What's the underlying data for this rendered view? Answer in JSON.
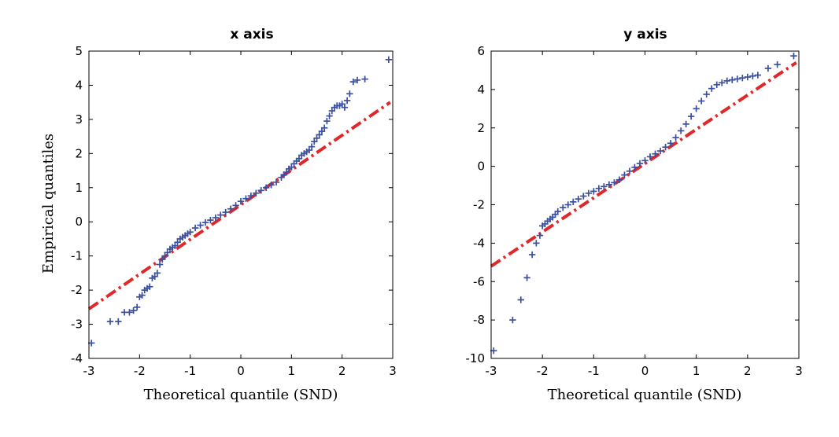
{
  "chart_data": [
    {
      "type": "scatter",
      "title": "x axis",
      "xlabel": "Theoretical quantile (SND)",
      "ylabel": "Empirical quantiles",
      "xlim": [
        -3,
        3
      ],
      "ylim": [
        -4,
        5
      ],
      "xticks": [
        "-3",
        "-2",
        "-1",
        "0",
        "1",
        "2",
        "3"
      ],
      "yticks": [
        "-4",
        "-3",
        "-2",
        "-1",
        "0",
        "1",
        "2",
        "3",
        "4",
        "5"
      ],
      "reference_line": {
        "x": [
          -3,
          2.95
        ],
        "y": [
          -2.55,
          3.5
        ],
        "color": "#e0282a",
        "style": "dash-dot"
      },
      "marker_color": "#3a4fa0",
      "points": {
        "x": [
          -2.95,
          -2.58,
          -2.42,
          -2.3,
          -2.2,
          -2.12,
          -2.05,
          -2.0,
          -1.95,
          -1.9,
          -1.85,
          -1.8,
          -1.75,
          -1.7,
          -1.65,
          -1.6,
          -1.55,
          -1.5,
          -1.45,
          -1.4,
          -1.35,
          -1.3,
          -1.25,
          -1.2,
          -1.15,
          -1.1,
          -1.05,
          -1.0,
          -0.9,
          -0.8,
          -0.7,
          -0.6,
          -0.5,
          -0.4,
          -0.3,
          -0.2,
          -0.1,
          0.0,
          0.1,
          0.2,
          0.3,
          0.4,
          0.5,
          0.6,
          0.7,
          0.8,
          0.85,
          0.9,
          0.95,
          1.0,
          1.05,
          1.1,
          1.15,
          1.2,
          1.25,
          1.3,
          1.35,
          1.4,
          1.45,
          1.5,
          1.55,
          1.6,
          1.65,
          1.7,
          1.75,
          1.8,
          1.85,
          1.9,
          1.95,
          2.0,
          2.05,
          2.1,
          2.15,
          2.22,
          2.3,
          2.45,
          2.92
        ],
        "y": [
          -3.55,
          -2.92,
          -2.92,
          -2.65,
          -2.65,
          -2.6,
          -2.5,
          -2.2,
          -2.15,
          -2.0,
          -1.95,
          -1.9,
          -1.65,
          -1.6,
          -1.5,
          -1.25,
          -1.1,
          -1.0,
          -0.9,
          -0.8,
          -0.75,
          -0.7,
          -0.6,
          -0.5,
          -0.45,
          -0.4,
          -0.35,
          -0.3,
          -0.18,
          -0.1,
          -0.02,
          0.05,
          0.12,
          0.2,
          0.28,
          0.38,
          0.48,
          0.6,
          0.68,
          0.76,
          0.84,
          0.92,
          1.0,
          1.08,
          1.16,
          1.3,
          1.38,
          1.45,
          1.55,
          1.6,
          1.7,
          1.78,
          1.85,
          1.95,
          2.0,
          2.05,
          2.1,
          2.2,
          2.35,
          2.45,
          2.55,
          2.65,
          2.75,
          2.95,
          3.1,
          3.25,
          3.35,
          3.4,
          3.4,
          3.45,
          3.35,
          3.55,
          3.75,
          4.1,
          4.15,
          4.18,
          4.75
        ]
      }
    },
    {
      "type": "scatter",
      "title": "y axis",
      "xlabel": "Theoretical quantile (SND)",
      "ylabel": "",
      "xlim": [
        -3,
        3
      ],
      "ylim": [
        -10,
        6
      ],
      "xticks": [
        "-3",
        "-2",
        "-1",
        "0",
        "1",
        "2",
        "3"
      ],
      "yticks": [
        "-10",
        "-8",
        "-6",
        "-4",
        "-2",
        "0",
        "2",
        "4",
        "6"
      ],
      "reference_line": {
        "x": [
          -3,
          2.95
        ],
        "y": [
          -5.2,
          5.4
        ],
        "color": "#e0282a",
        "style": "dash-dot"
      },
      "marker_color": "#3a4fa0",
      "points": {
        "x": [
          -2.95,
          -2.58,
          -2.42,
          -2.3,
          -2.2,
          -2.12,
          -2.05,
          -2.0,
          -1.95,
          -1.9,
          -1.85,
          -1.8,
          -1.75,
          -1.7,
          -1.6,
          -1.5,
          -1.4,
          -1.3,
          -1.2,
          -1.1,
          -1.0,
          -0.9,
          -0.8,
          -0.7,
          -0.6,
          -0.5,
          -0.4,
          -0.3,
          -0.2,
          -0.1,
          0.0,
          0.1,
          0.2,
          0.3,
          0.4,
          0.5,
          0.6,
          0.7,
          0.8,
          0.9,
          1.0,
          1.1,
          1.2,
          1.3,
          1.4,
          1.5,
          1.6,
          1.7,
          1.8,
          1.9,
          2.0,
          2.1,
          2.2,
          2.4,
          2.58,
          2.9
        ],
        "y": [
          -9.6,
          -8.0,
          -6.95,
          -5.8,
          -4.6,
          -4.0,
          -3.6,
          -3.1,
          -3.0,
          -2.85,
          -2.75,
          -2.65,
          -2.5,
          -2.35,
          -2.15,
          -2.0,
          -1.85,
          -1.7,
          -1.55,
          -1.4,
          -1.3,
          -1.15,
          -1.05,
          -0.95,
          -0.85,
          -0.7,
          -0.45,
          -0.25,
          -0.05,
          0.15,
          0.3,
          0.5,
          0.65,
          0.8,
          1.0,
          1.2,
          1.5,
          1.85,
          2.2,
          2.6,
          3.0,
          3.4,
          3.75,
          4.05,
          4.25,
          4.35,
          4.45,
          4.5,
          4.55,
          4.6,
          4.65,
          4.7,
          4.75,
          5.1,
          5.3,
          5.75
        ]
      }
    }
  ]
}
